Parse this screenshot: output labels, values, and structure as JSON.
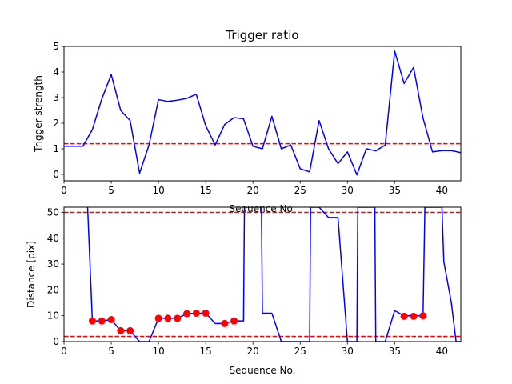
{
  "chart_data": [
    {
      "type": "line",
      "title": "Trigger ratio",
      "xlabel": "Sequence No.",
      "ylabel": "Trigger strength",
      "xlim": [
        0,
        42
      ],
      "ylim": [
        -0.25,
        5.0
      ],
      "xticks": [
        0,
        5,
        10,
        15,
        20,
        25,
        30,
        35,
        40
      ],
      "yticks": [
        0,
        1,
        2,
        3,
        4,
        5
      ],
      "grid": false,
      "series": [
        {
          "color": "#0000ff",
          "x": [
            0,
            1,
            2,
            3,
            4,
            5,
            6,
            7,
            8,
            9,
            10,
            11,
            12,
            13,
            14,
            15,
            16,
            17,
            18,
            19,
            20,
            21,
            22,
            23,
            24,
            25,
            26,
            27,
            28,
            29,
            30,
            31,
            32,
            33,
            34,
            35,
            36,
            37,
            38,
            39,
            40,
            41,
            42
          ],
          "y": [
            1.1,
            1.1,
            1.1,
            1.75,
            2.95,
            3.9,
            2.5,
            2.1,
            0.05,
            1.15,
            2.92,
            2.85,
            2.9,
            2.97,
            3.13,
            1.9,
            1.15,
            1.95,
            2.22,
            2.17,
            1.1,
            1.0,
            2.27,
            1.0,
            1.15,
            0.22,
            0.1,
            2.1,
            1.0,
            0.42,
            0.88,
            -0.02,
            1.0,
            0.92,
            1.15,
            4.82,
            3.55,
            4.18,
            2.2,
            0.88,
            0.93,
            0.93,
            0.85
          ]
        }
      ],
      "hlines": [
        {
          "y": 1.2,
          "color": "#ff0000",
          "style": "dashed"
        }
      ]
    },
    {
      "type": "line",
      "title": "",
      "xlabel": "Sequence No.",
      "ylabel": "Distance [pix]",
      "xlim": [
        0,
        42
      ],
      "ylim": [
        0,
        52
      ],
      "xticks": [
        0,
        5,
        10,
        15,
        20,
        25,
        30,
        35,
        40
      ],
      "yticks": [
        0,
        10,
        20,
        30,
        40,
        50
      ],
      "grid": false,
      "series": [
        {
          "color": "#0000ff",
          "x": [
            2.5,
            3,
            4,
            5,
            6,
            7,
            8,
            9,
            10,
            11,
            12,
            13,
            14,
            15,
            16,
            17,
            18,
            19,
            19.1,
            20,
            20.9,
            21,
            22,
            23,
            24,
            25,
            26,
            26.1,
            26.2,
            27,
            28,
            29,
            30,
            31,
            31.1,
            31.2,
            32,
            32.9,
            33,
            34,
            35,
            36,
            37,
            38,
            38.2,
            39,
            40,
            40.2,
            41,
            41.5,
            42
          ],
          "y": [
            52,
            8,
            8,
            8.5,
            4.2,
            4.2,
            0,
            0,
            9,
            9,
            9,
            10.8,
            11,
            11,
            7,
            7,
            8,
            8,
            52,
            52,
            52,
            11,
            11,
            0,
            0,
            0,
            0,
            52,
            52,
            52,
            48,
            48,
            0,
            0,
            52,
            52,
            52,
            52,
            0,
            0,
            12,
            10,
            10,
            10,
            52,
            52,
            52,
            31,
            15,
            0,
            0
          ]
        },
        {
          "color": "#ff0000",
          "marker": "circle",
          "x": [
            3,
            4,
            5,
            6,
            7,
            10,
            11,
            12,
            13,
            14,
            15,
            17,
            18,
            36,
            37,
            38
          ],
          "y": [
            8,
            8,
            8.5,
            4.2,
            4.2,
            9,
            9,
            9,
            10.8,
            11,
            11,
            7,
            8,
            9.8,
            9.8,
            10
          ]
        }
      ],
      "hlines": [
        {
          "y": 50,
          "color": "#ff0000",
          "style": "dashed"
        },
        {
          "y": 2,
          "color": "#ff0000",
          "style": "dashed"
        }
      ]
    }
  ]
}
